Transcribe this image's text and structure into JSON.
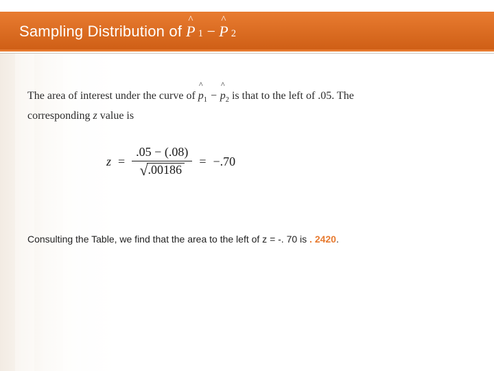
{
  "colors": {
    "accent": "#e77a2f",
    "accent_dark": "#cf5f16",
    "rule_shadow": "#c9c4bd",
    "text": "#2b2b2b",
    "highlight": "#e77a2f"
  },
  "header": {
    "title_prefix": "Sampling Distribution of",
    "formula": {
      "p1_symbol": "P",
      "p1_sub": "1",
      "minus": "−",
      "p2_symbol": "P",
      "p2_sub": "2"
    }
  },
  "lead": {
    "pre": "The area of interest under the curve of ",
    "p1_symbol": "p̂",
    "p1_sub": "1",
    "minus": " − ",
    "p2_symbol": "p̂",
    "p2_sub": "2",
    "mid": " is that to the left of ",
    "value": ".05",
    "post1": ". The",
    "line2_pre": "corresponding ",
    "z_var": "z",
    "line2_post": " value is"
  },
  "equation": {
    "lhs_var": "z",
    "eq1": "=",
    "num_a": ".05",
    "num_op": "−",
    "num_b": "(.08)",
    "den_radicand": ".00186",
    "eq2": "=",
    "rhs_neg": "−",
    "rhs_val": ".70"
  },
  "conclusion": {
    "pre": "Consulting the Table, we find that the area to the left of z = -. 70 is ",
    "hl": ". 2420",
    "post": "."
  }
}
